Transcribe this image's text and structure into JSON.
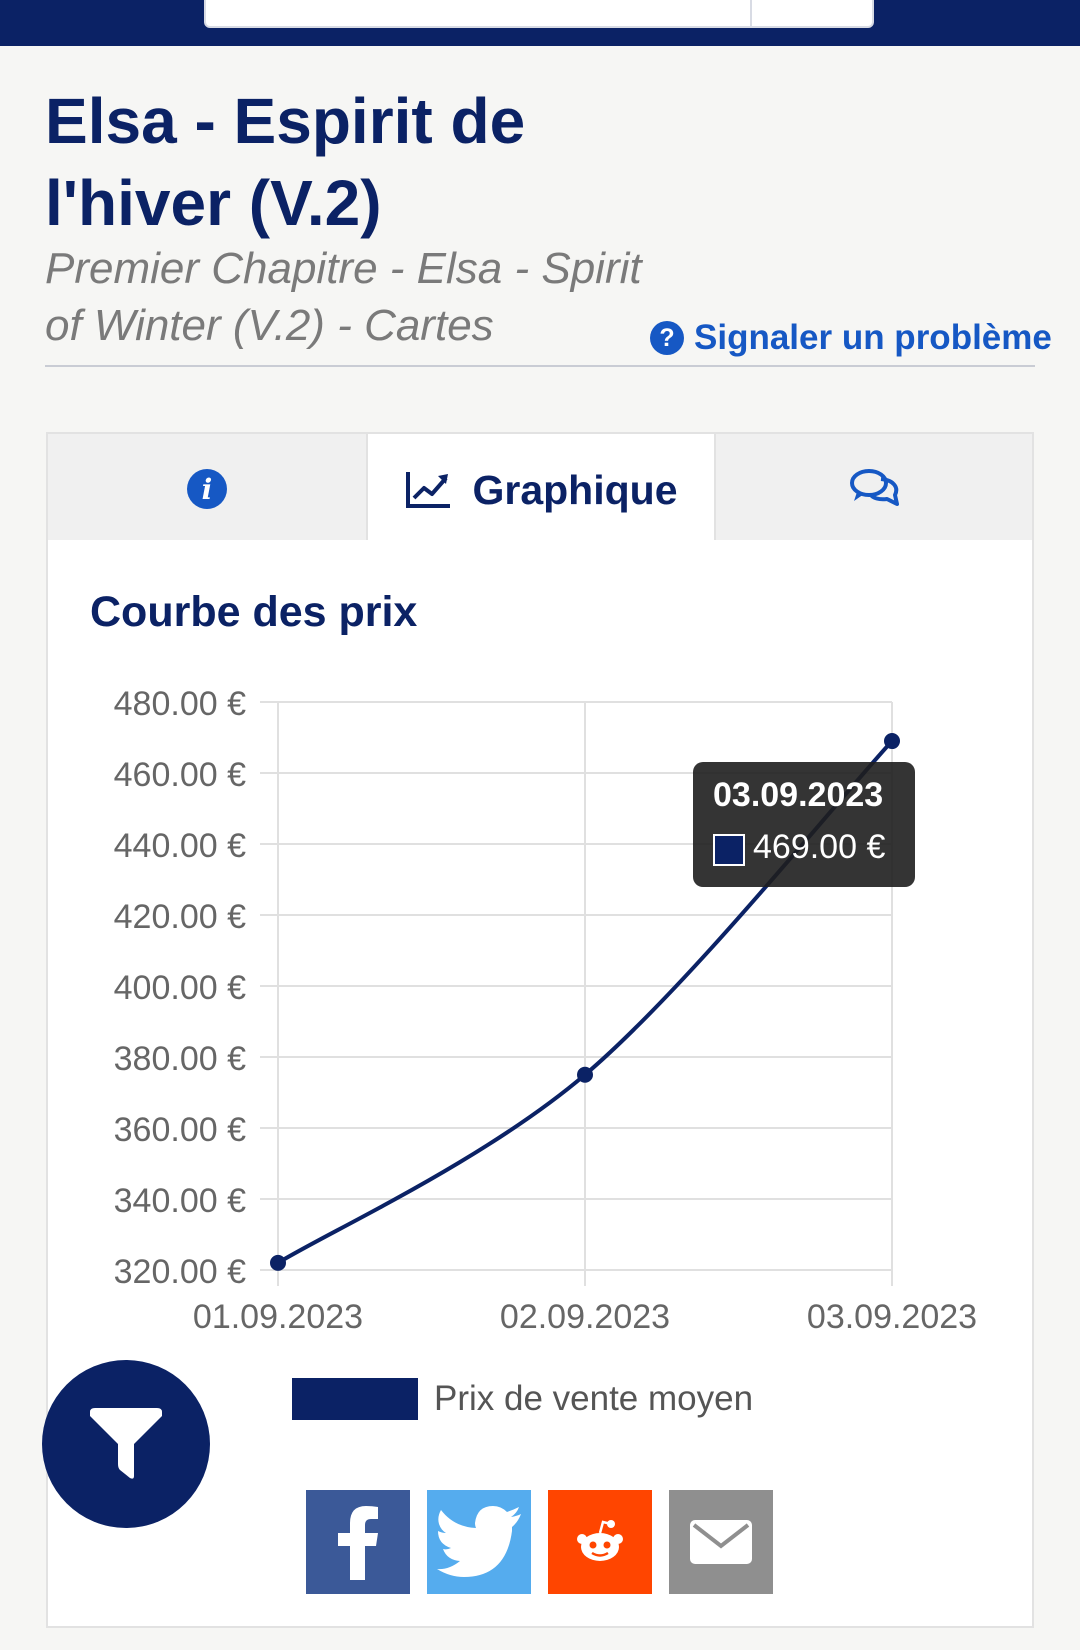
{
  "product": {
    "title": "Elsa - Espirit de l'hiver (V.2)",
    "subtitle": "Premier Chapitre - Elsa - Spirit of Winter (V.2) - Cartes",
    "report_link": "Signaler un problème"
  },
  "tabs": [
    {
      "id": "info",
      "icon": "info-icon",
      "label": ""
    },
    {
      "id": "graph",
      "icon": "chart-line-icon",
      "label": "Graphique",
      "active": true
    },
    {
      "id": "comments",
      "icon": "comments-icon",
      "label": ""
    }
  ],
  "chart": {
    "heading": "Courbe des prix",
    "tooltip": {
      "date": "03.09.2023",
      "value": "469.00 €"
    },
    "legend": "Prix de vente moyen"
  },
  "chart_data": {
    "type": "line",
    "title": "Courbe des prix",
    "x": [
      "01.09.2023",
      "02.09.2023",
      "03.09.2023"
    ],
    "series": [
      {
        "name": "Prix de vente moyen",
        "values": [
          322,
          375,
          469
        ]
      }
    ],
    "ylim": [
      320,
      480
    ],
    "yticks": [
      480,
      460,
      440,
      420,
      400,
      380,
      360,
      340,
      320
    ],
    "ytick_labels": [
      "480.00 €",
      "460.00 €",
      "440.00 €",
      "420.00 €",
      "400.00 €",
      "380.00 €",
      "360.00 €",
      "340.00 €",
      "320.00 €"
    ],
    "grid": true,
    "legend_position": "bottom",
    "color": "#0b2265"
  },
  "share": [
    {
      "id": "facebook",
      "icon": "facebook-icon",
      "color": "#3b5998"
    },
    {
      "id": "twitter",
      "icon": "twitter-icon",
      "color": "#55acee"
    },
    {
      "id": "reddit",
      "icon": "reddit-icon",
      "color": "#ff4500"
    },
    {
      "id": "email",
      "icon": "envelope-icon",
      "color": "#8f8f8f"
    }
  ],
  "colors": {
    "brand": "#0b2265",
    "link": "#1658c4"
  }
}
